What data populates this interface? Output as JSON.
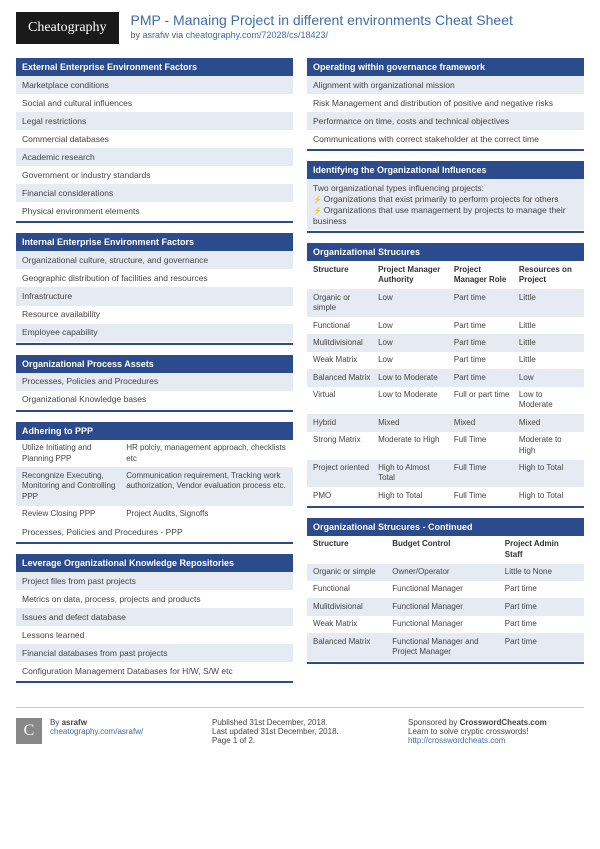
{
  "header": {
    "logo": "Cheatography",
    "title": "PMP - Manaing Project in different environments Cheat Sheet",
    "by": "by ",
    "author": "asrafw",
    "via": " via ",
    "url": "cheatography.com/72028/cs/18423/"
  },
  "colors": {
    "header_bg": "#2c4b8c",
    "header_text": "#ffffff",
    "alt_row": "#e6eaf2",
    "link": "#3e6da8"
  },
  "left": [
    {
      "title": "External Enterprise Environment Factors",
      "type": "list",
      "items": [
        "Marketplace conditions",
        "Social and cultural influences",
        "Legal restrictions",
        "Commercial databases",
        "Academic research",
        "Government or industry standards",
        "Financial considerations",
        "Physical environment elements"
      ]
    },
    {
      "title": "Internal Enterprise Environment Factors",
      "type": "list",
      "items": [
        "Organizational culture, structure, and governance",
        "Geographic distribution of facilities and resources",
        "Infrastructure",
        "Resource availability",
        "Employee capability"
      ]
    },
    {
      "title": "Organizational Process Assets",
      "type": "list",
      "items": [
        "Processes, Policies and Procedures",
        "Organizational Knowledge bases"
      ]
    },
    {
      "title": "Adhering to PPP",
      "type": "adh",
      "rows": [
        [
          "Utilize Initiating and Planning PPP",
          "HR polciy, management approach, checklists etc"
        ],
        [
          "Recongnize Executing, Monitoring and Controlling PPP",
          "Communication requirement, Tracking work authorization, Vendor evaluation process etc."
        ],
        [
          "Review Closing PPP",
          "Project Audits, Signoffs"
        ]
      ],
      "foot": "Processes, Policies and Procedures - PPP"
    },
    {
      "title": "Leverage Organizational Knowledge Repositories",
      "type": "list",
      "items": [
        "Project files from past projects",
        "Metrics on data, process, projects and products",
        "Issues and defect database",
        "Lessons learned",
        "Financial databases from past projects",
        "Configuration Management Databases for H/W, S/W etc"
      ]
    }
  ],
  "right": [
    {
      "title": "Operating within governance framework",
      "type": "list",
      "items": [
        "Alignment with organizational mission",
        "Risk Management and distribution of positive and negative risks",
        "Performance on time, costs and technical objectives",
        "Communications with correct stakeholder at the correct time"
      ]
    },
    {
      "title": "Identifying the Organizational Influences",
      "type": "note",
      "lead": "Two organizational types influencing projects:",
      "bullets": [
        "Organizations that exist primarily to perform projects for others",
        "Organizations that use management by projects to manage their business"
      ]
    },
    {
      "title": "Organizational Strucures",
      "type": "tbl",
      "headers": [
        "Structure",
        "Project Manager Authority",
        "Project Manager Role",
        "Resources on Project"
      ],
      "rows": [
        [
          "Organic or simple",
          "Low",
          "Part time",
          "Little"
        ],
        [
          "Functional",
          "Low",
          "Part time",
          "Little"
        ],
        [
          "Mulitdivisional",
          "Low",
          "Part time",
          "Little"
        ],
        [
          "Weak Matrix",
          "Low",
          "Part time",
          "Little"
        ],
        [
          "Balanced Matrix",
          "Low to Moderate",
          "Part time",
          "Low"
        ],
        [
          "Virtual",
          "Low to Moderate",
          "Full or part time",
          "Low to Moderate"
        ],
        [
          "Hybrid",
          "Mixed",
          "Mixed",
          "Mixed"
        ],
        [
          "Strong Matrix",
          "Moderate to High",
          "Full Time",
          "Moderate to High"
        ],
        [
          "Project oriented",
          "High to Almost Total",
          "Full Time",
          "High to Total"
        ],
        [
          "PMO",
          "High to Total",
          "Full Time",
          "High to Total"
        ]
      ]
    },
    {
      "title": "Organizational Strucures - Continued",
      "type": "tbl2",
      "headers": [
        "Structure",
        "Budget Control",
        "Project Admin Staff"
      ],
      "rows": [
        [
          "Organic or simple",
          "Owner/Operator",
          "Little to None"
        ],
        [
          "Functional",
          "Functional Manager",
          "Part time"
        ],
        [
          "Mulitdivisional",
          "Functional Manager",
          "Part time"
        ],
        [
          "Weak Matrix",
          "Functional Manager",
          "Part time"
        ],
        [
          "Balanced Matrix",
          "Functional Manager and Project Manager",
          "Part time"
        ]
      ]
    }
  ],
  "footer": {
    "author_label": "By ",
    "author": "asrafw",
    "author_url": "cheatography.com/asrafw/",
    "pub": "Published 31st December, 2018.",
    "upd": "Last updated 31st December, 2018.",
    "page": "Page 1 of 2.",
    "spons": "Sponsored by ",
    "spons_name": "CrosswordCheats.com",
    "spons_tag": "Learn to solve cryptic crosswords!",
    "spons_url": "http://crosswordcheats.com"
  }
}
